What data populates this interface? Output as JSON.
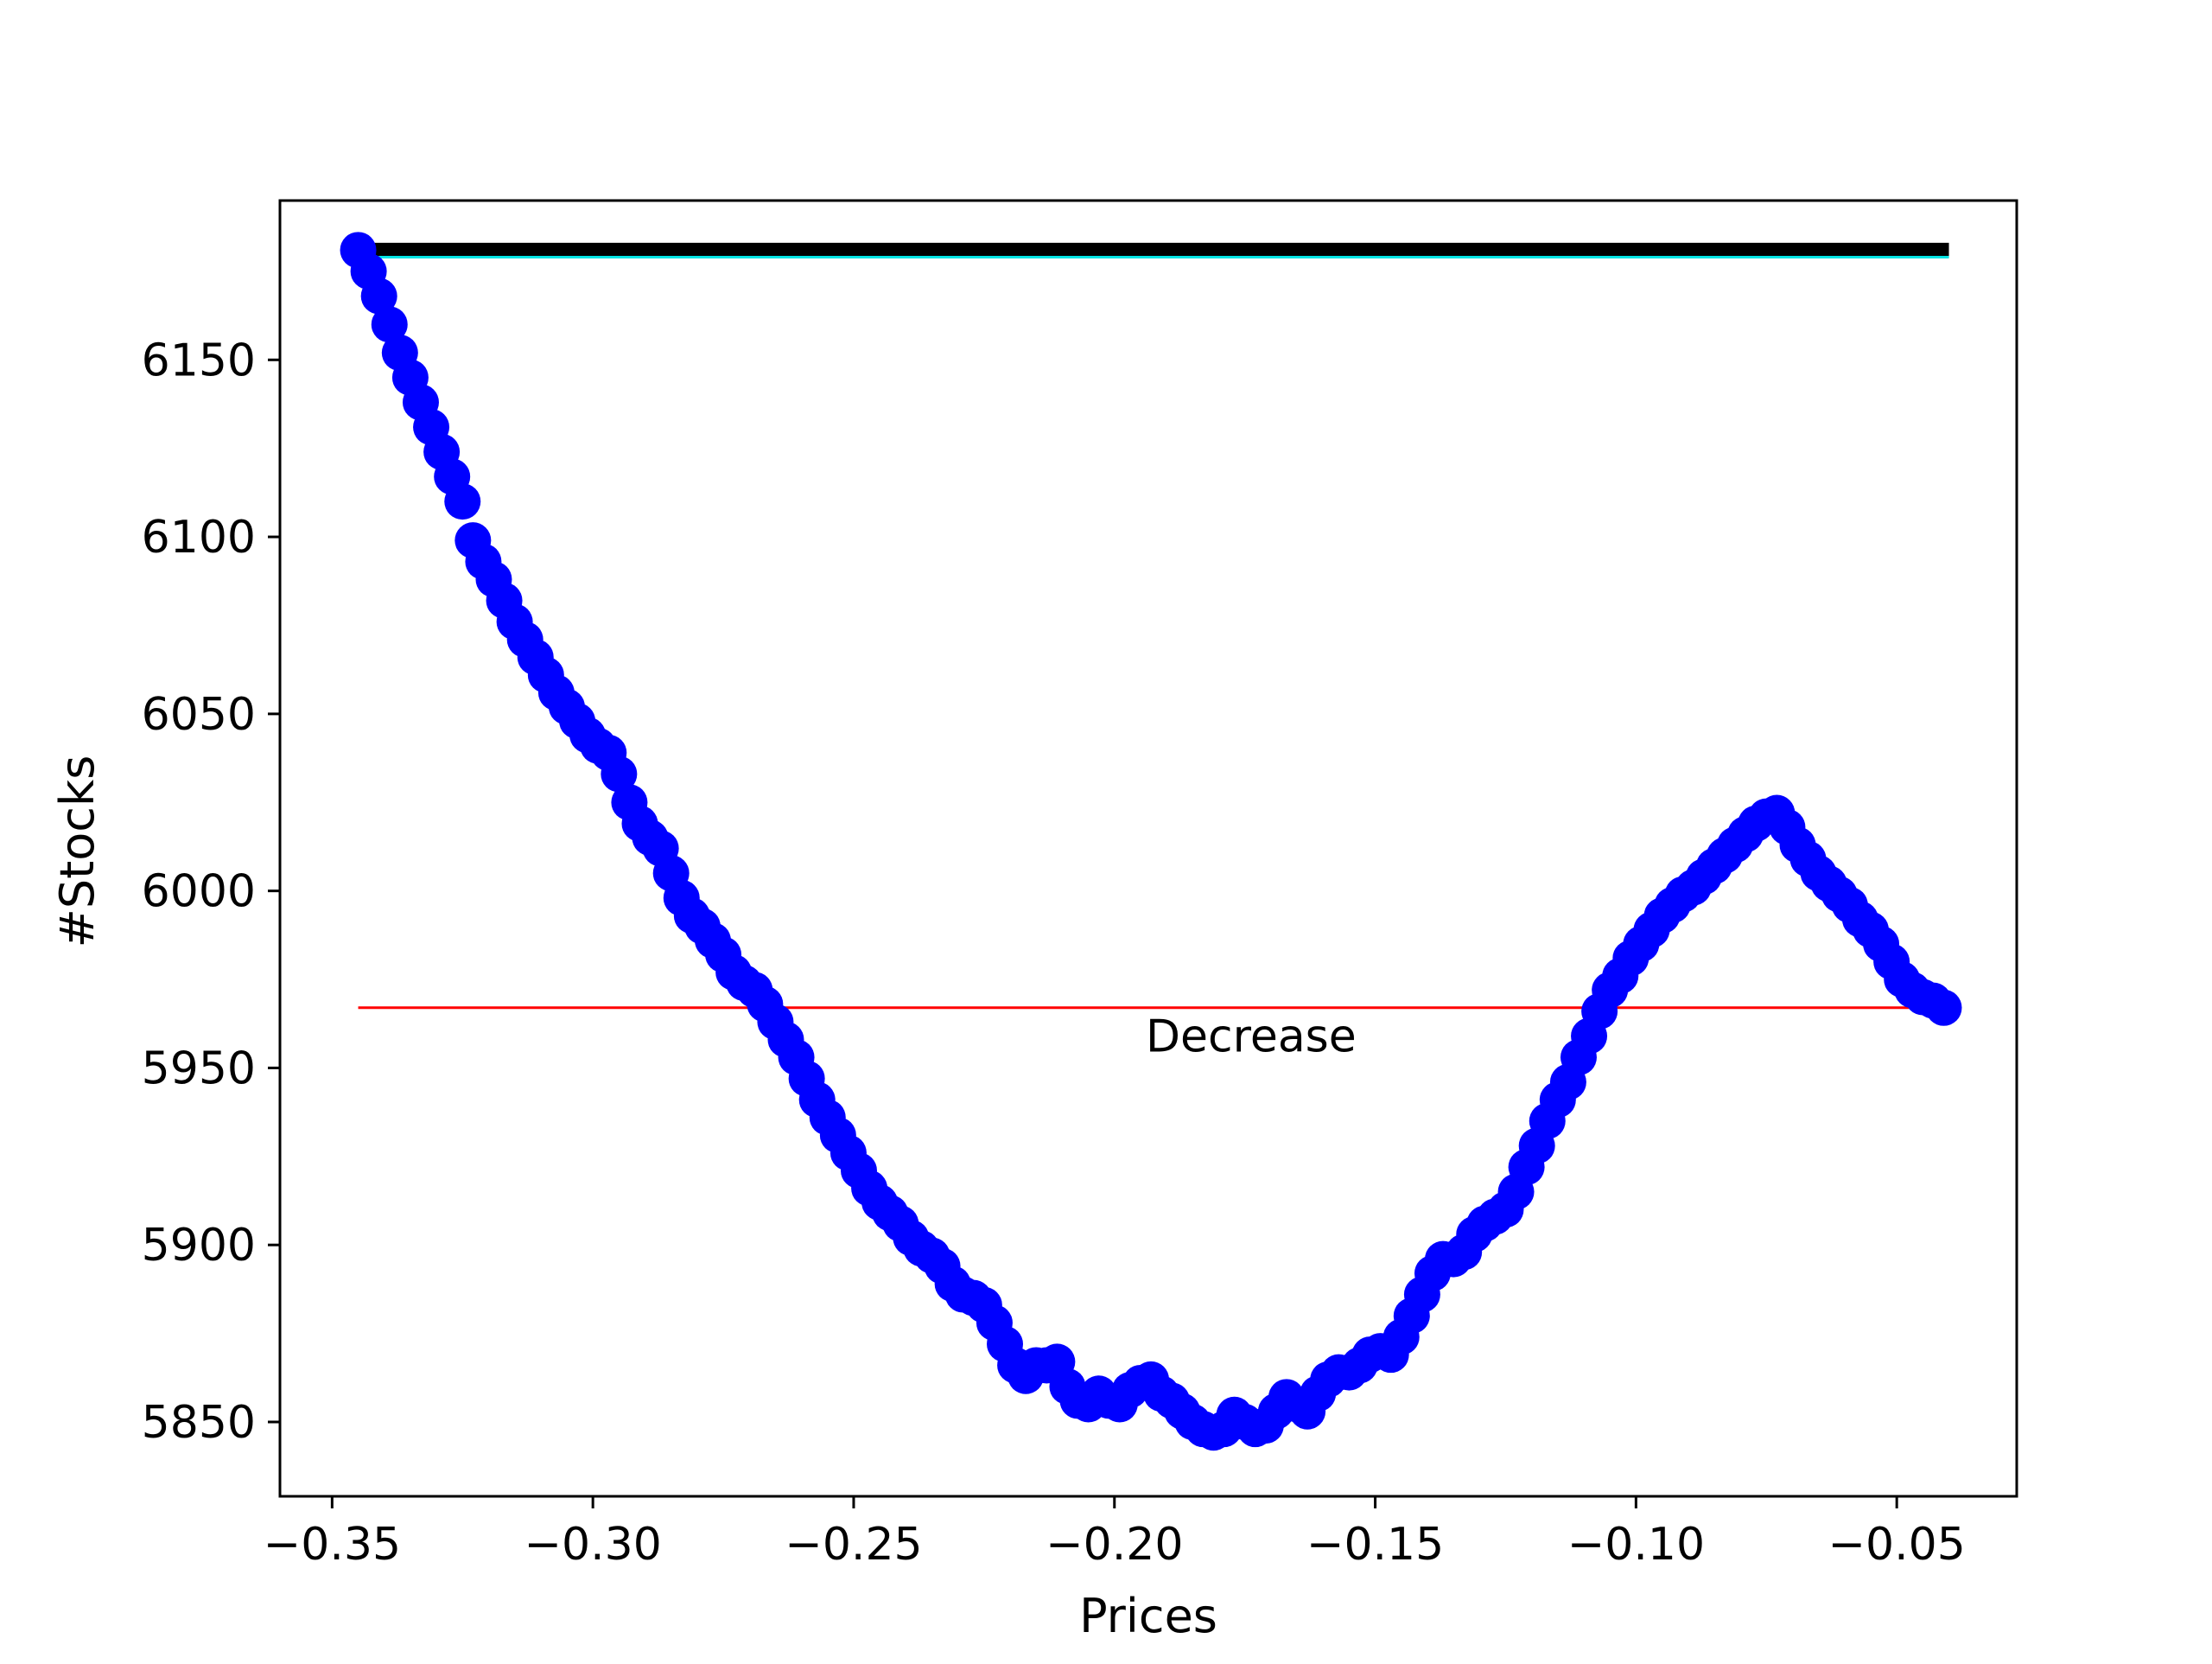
{
  "chart_data": {
    "type": "scatter",
    "title": "",
    "xlabel": "Prices",
    "ylabel": "#Stocks",
    "xlim": [
      -0.36,
      -0.027
    ],
    "ylim": [
      5829,
      6195
    ],
    "grid": false,
    "x_ticks": [
      -0.35,
      -0.3,
      -0.25,
      -0.2,
      -0.15,
      -0.1,
      -0.05
    ],
    "x_tick_labels": [
      "−0.35",
      "−0.30",
      "−0.25",
      "−0.20",
      "−0.15",
      "−0.10",
      "−0.05"
    ],
    "y_ticks": [
      5850,
      5900,
      5950,
      6000,
      6050,
      6100,
      6150
    ],
    "y_tick_labels": [
      "5850",
      "5900",
      "5950",
      "6000",
      "6050",
      "6100",
      "6150"
    ],
    "reference_lines": [
      {
        "y": 6181,
        "x": [
          -0.345,
          -0.04
        ],
        "color": "#000000",
        "style": "thick"
      },
      {
        "y": 6179,
        "x": [
          -0.345,
          -0.04
        ],
        "color": "#00e5e5",
        "style": "thin"
      },
      {
        "y": 5967,
        "x": [
          -0.345,
          -0.044
        ],
        "color": "#ff0000",
        "style": "thin"
      }
    ],
    "annotations": [
      {
        "text": "Decrease",
        "x": -0.194,
        "y": 5959
      }
    ],
    "series": [
      {
        "color": "#0000ff",
        "points": [
          [
            -0.345,
            6181
          ],
          [
            -0.343,
            6175
          ],
          [
            -0.341,
            6168
          ],
          [
            -0.339,
            6160
          ],
          [
            -0.337,
            6152
          ],
          [
            -0.335,
            6145
          ],
          [
            -0.333,
            6138
          ],
          [
            -0.331,
            6131
          ],
          [
            -0.329,
            6124
          ],
          [
            -0.327,
            6117
          ],
          [
            -0.325,
            6110
          ],
          [
            -0.323,
            6099
          ],
          [
            -0.321,
            6093
          ],
          [
            -0.319,
            6088
          ],
          [
            -0.317,
            6082
          ],
          [
            -0.315,
            6076
          ],
          [
            -0.313,
            6071
          ],
          [
            -0.311,
            6066
          ],
          [
            -0.309,
            6061
          ],
          [
            -0.307,
            6056
          ],
          [
            -0.305,
            6052
          ],
          [
            -0.303,
            6048
          ],
          [
            -0.301,
            6044
          ],
          [
            -0.299,
            6041
          ],
          [
            -0.297,
            6039
          ],
          [
            -0.295,
            6033
          ],
          [
            -0.293,
            6025
          ],
          [
            -0.291,
            6019
          ],
          [
            -0.289,
            6015
          ],
          [
            -0.287,
            6012
          ],
          [
            -0.285,
            6005
          ],
          [
            -0.283,
            5998
          ],
          [
            -0.281,
            5993
          ],
          [
            -0.279,
            5990
          ],
          [
            -0.277,
            5986
          ],
          [
            -0.275,
            5982
          ],
          [
            -0.273,
            5977
          ],
          [
            -0.271,
            5974
          ],
          [
            -0.269,
            5972
          ],
          [
            -0.267,
            5968
          ],
          [
            -0.265,
            5963
          ],
          [
            -0.263,
            5958
          ],
          [
            -0.261,
            5953
          ],
          [
            -0.259,
            5947
          ],
          [
            -0.257,
            5941
          ],
          [
            -0.255,
            5936
          ],
          [
            -0.253,
            5931
          ],
          [
            -0.251,
            5926
          ],
          [
            -0.249,
            5921
          ],
          [
            -0.247,
            5916
          ],
          [
            -0.245,
            5912
          ],
          [
            -0.243,
            5909
          ],
          [
            -0.241,
            5906
          ],
          [
            -0.239,
            5902
          ],
          [
            -0.237,
            5899
          ],
          [
            -0.235,
            5897
          ],
          [
            -0.233,
            5894
          ],
          [
            -0.231,
            5889
          ],
          [
            -0.229,
            5886
          ],
          [
            -0.227,
            5885
          ],
          [
            -0.225,
            5883
          ],
          [
            -0.223,
            5878
          ],
          [
            -0.221,
            5872
          ],
          [
            -0.219,
            5866
          ],
          [
            -0.217,
            5863
          ],
          [
            -0.215,
            5866
          ],
          [
            -0.213,
            5866
          ],
          [
            -0.211,
            5867
          ],
          [
            -0.209,
            5860
          ],
          [
            -0.207,
            5856
          ],
          [
            -0.205,
            5855
          ],
          [
            -0.203,
            5858
          ],
          [
            -0.201,
            5856
          ],
          [
            -0.199,
            5855
          ],
          [
            -0.197,
            5859
          ],
          [
            -0.195,
            5861
          ],
          [
            -0.193,
            5862
          ],
          [
            -0.191,
            5858
          ],
          [
            -0.189,
            5856
          ],
          [
            -0.187,
            5853
          ],
          [
            -0.185,
            5850
          ],
          [
            -0.183,
            5848
          ],
          [
            -0.181,
            5847
          ],
          [
            -0.179,
            5848
          ],
          [
            -0.177,
            5852
          ],
          [
            -0.175,
            5850
          ],
          [
            -0.173,
            5848
          ],
          [
            -0.171,
            5849
          ],
          [
            -0.169,
            5853
          ],
          [
            -0.167,
            5857
          ],
          [
            -0.165,
            5855
          ],
          [
            -0.163,
            5853
          ],
          [
            -0.161,
            5858
          ],
          [
            -0.159,
            5862
          ],
          [
            -0.157,
            5864
          ],
          [
            -0.155,
            5864
          ],
          [
            -0.153,
            5866
          ],
          [
            -0.151,
            5869
          ],
          [
            -0.149,
            5870
          ],
          [
            -0.147,
            5869
          ],
          [
            -0.145,
            5874
          ],
          [
            -0.143,
            5880
          ],
          [
            -0.141,
            5886
          ],
          [
            -0.139,
            5892
          ],
          [
            -0.137,
            5896
          ],
          [
            -0.135,
            5896
          ],
          [
            -0.133,
            5898
          ],
          [
            -0.131,
            5903
          ],
          [
            -0.129,
            5906
          ],
          [
            -0.127,
            5908
          ],
          [
            -0.125,
            5910
          ],
          [
            -0.123,
            5915
          ],
          [
            -0.121,
            5922
          ],
          [
            -0.119,
            5928
          ],
          [
            -0.117,
            5935
          ],
          [
            -0.115,
            5941
          ],
          [
            -0.113,
            5946
          ],
          [
            -0.111,
            5953
          ],
          [
            -0.109,
            5959
          ],
          [
            -0.107,
            5966
          ],
          [
            -0.105,
            5972
          ],
          [
            -0.103,
            5976
          ],
          [
            -0.101,
            5981
          ],
          [
            -0.099,
            5985
          ],
          [
            -0.097,
            5989
          ],
          [
            -0.095,
            5993
          ],
          [
            -0.093,
            5996
          ],
          [
            -0.091,
            5999
          ],
          [
            -0.089,
            6001
          ],
          [
            -0.087,
            6004
          ],
          [
            -0.085,
            6007
          ],
          [
            -0.083,
            6010
          ],
          [
            -0.081,
            6013
          ],
          [
            -0.079,
            6016
          ],
          [
            -0.077,
            6019
          ],
          [
            -0.075,
            6021
          ],
          [
            -0.073,
            6022
          ],
          [
            -0.071,
            6018
          ],
          [
            -0.069,
            6013
          ],
          [
            -0.067,
            6009
          ],
          [
            -0.065,
            6005
          ],
          [
            -0.063,
            6002
          ],
          [
            -0.061,
            5999
          ],
          [
            -0.059,
            5996
          ],
          [
            -0.057,
            5992
          ],
          [
            -0.055,
            5989
          ],
          [
            -0.053,
            5985
          ],
          [
            -0.051,
            5980
          ],
          [
            -0.049,
            5975
          ],
          [
            -0.047,
            5972
          ],
          [
            -0.045,
            5970
          ],
          [
            -0.043,
            5969
          ],
          [
            -0.041,
            5967
          ]
        ]
      }
    ]
  }
}
